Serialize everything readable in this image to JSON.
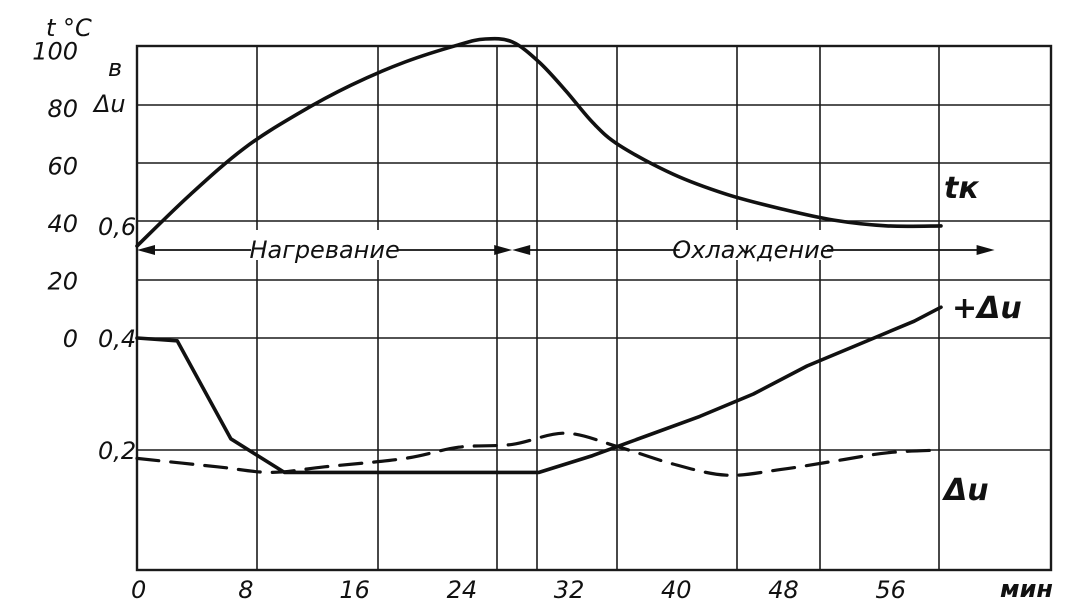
{
  "chart_data": {
    "type": "line",
    "title": "",
    "xlabel": "мин",
    "ylabel_left": "t °C",
    "ylabel_right": "в Δu",
    "x_ticks": [
      "0",
      "8",
      "16",
      "24",
      "32",
      "40",
      "48",
      "56"
    ],
    "y_ticks_temp": [
      "100",
      "80",
      "60",
      "40",
      "20",
      "0"
    ],
    "y_ticks_voltage": [
      "0,6",
      "0,4",
      "0,2"
    ],
    "xlim": [
      0,
      64
    ],
    "ylim_temp": [
      -80,
      105
    ],
    "grid": true,
    "phases": [
      {
        "label": "Нагревание",
        "x_range": [
          0,
          28
        ]
      },
      {
        "label": "Охлаждение",
        "x_range": [
          28,
          64
        ]
      }
    ],
    "series": [
      {
        "name": "tк",
        "style": "solid",
        "axis": "temperature",
        "x": [
          0,
          4,
          8,
          12,
          16,
          20,
          24,
          26,
          28,
          30,
          32,
          34,
          36,
          40,
          44,
          48,
          52,
          56,
          60
        ],
        "y": [
          32,
          50,
          66,
          78,
          88,
          96,
          102,
          104,
          103,
          96,
          86,
          75,
          67,
          57,
          50,
          45,
          41,
          39,
          39
        ]
      },
      {
        "name": "+Δu",
        "style": "solid",
        "axis": "voltage",
        "x": [
          0,
          3,
          7,
          11,
          20,
          30,
          34,
          38,
          42,
          46,
          50,
          54,
          58,
          60
        ],
        "y": [
          0.4,
          0.395,
          0.22,
          0.16,
          0.16,
          0.16,
          0.19,
          0.225,
          0.26,
          0.3,
          0.35,
          0.39,
          0.43,
          0.455
        ]
      },
      {
        "name": "Δu",
        "style": "dashed",
        "axis": "voltage",
        "x": [
          0,
          6,
          10,
          14,
          20,
          24,
          28,
          32,
          36,
          40,
          44,
          48,
          52,
          56,
          60
        ],
        "y": [
          0.185,
          0.17,
          0.16,
          0.17,
          0.185,
          0.205,
          0.21,
          0.23,
          0.205,
          0.175,
          0.155,
          0.165,
          0.18,
          0.195,
          0.2
        ]
      }
    ]
  }
}
